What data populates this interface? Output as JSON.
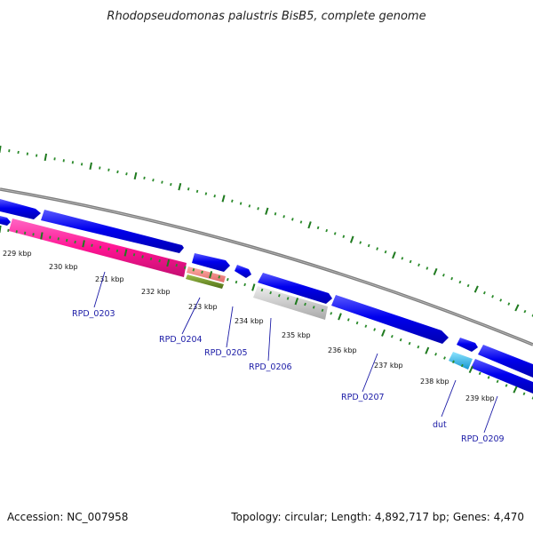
{
  "title": "Rhodopseudomonas palustris BisB5, complete genome",
  "footer": {
    "accession": "Accession: NC_007958",
    "summary": "Topology: circular; Length: 4,892,717 bp; Genes: 4,470"
  },
  "colors": {
    "background": "#ffffff",
    "backbone": "#808080",
    "forward_gene": "#0000ee",
    "minor_tick": "#2a8a2a",
    "major_tick": "#1f7a1f",
    "label_line": "#1a1aa6"
  },
  "scale": {
    "unit": "kbp",
    "ticks": [
      {
        "value": 229,
        "label": "229 kbp"
      },
      {
        "value": 230,
        "label": "230 kbp"
      },
      {
        "value": 231,
        "label": "231 kbp"
      },
      {
        "value": 232,
        "label": "232 kbp"
      },
      {
        "value": 233,
        "label": "233 kbp"
      },
      {
        "value": 234,
        "label": "234 kbp"
      },
      {
        "value": 235,
        "label": "235 kbp"
      },
      {
        "value": 236,
        "label": "236 kbp"
      },
      {
        "value": 237,
        "label": "237 kbp"
      },
      {
        "value": 238,
        "label": "238 kbp"
      },
      {
        "value": 239,
        "label": "239 kbp"
      }
    ]
  },
  "genes": [
    {
      "name": "RPD_0203",
      "label": "RPD_0203"
    },
    {
      "name": "RPD_0204",
      "label": "RPD_0204"
    },
    {
      "name": "RPD_0205",
      "label": "RPD_0205"
    },
    {
      "name": "RPD_0206",
      "label": "RPD_0206"
    },
    {
      "name": "RPD_0207",
      "label": "RPD_0207"
    },
    {
      "name": "dut",
      "label": "dut"
    },
    {
      "name": "RPD_0209",
      "label": "RPD_0209"
    }
  ],
  "feature_colors": {
    "RPD_0203": "#ff1493",
    "RPD_0204": "#f08080",
    "RPD_0205": "#6b8e23",
    "RPD_0206": "#c8c8c8",
    "dut": "#1eb4f0"
  }
}
